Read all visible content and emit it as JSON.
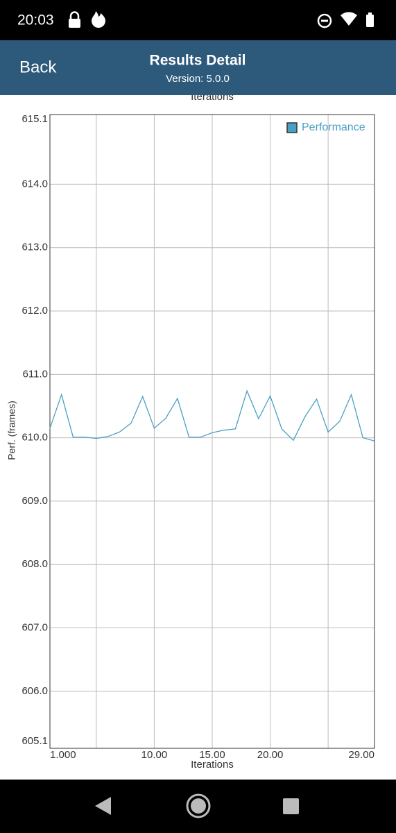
{
  "status_bar": {
    "time": "20:03"
  },
  "app_bar": {
    "back": "Back",
    "title": "Results Detail",
    "subtitle": "Version: 5.0.0"
  },
  "chart_data": {
    "type": "line",
    "top_label": "Iterations",
    "x_label": "Iterations",
    "y_label": "Perf. (frames)",
    "x": [
      1,
      2,
      3,
      4,
      5,
      6,
      7,
      8,
      9,
      10,
      11,
      12,
      13,
      14,
      15,
      16,
      17,
      18,
      19,
      20,
      21,
      22,
      23,
      24,
      25,
      26,
      27,
      28,
      29
    ],
    "series": [
      {
        "name": "Performance",
        "color": "#4a9fc4",
        "values": [
          610.15,
          610.68,
          610.01,
          610.01,
          609.99,
          610.02,
          610.09,
          610.23,
          610.65,
          610.15,
          610.31,
          610.62,
          610.01,
          610.01,
          610.08,
          610.12,
          610.14,
          610.74,
          610.3,
          610.66,
          610.14,
          609.96,
          610.33,
          610.61,
          610.09,
          610.26,
          610.68,
          610.0,
          609.95
        ]
      }
    ],
    "xlim": [
      1,
      29
    ],
    "xticks": [
      {
        "value": 1,
        "label": "1.000"
      },
      {
        "value": 5,
        "label": null
      },
      {
        "value": 10,
        "label": "10.00"
      },
      {
        "value": 15,
        "label": "15.00"
      },
      {
        "value": 20,
        "label": "20.00"
      },
      {
        "value": 25,
        "label": null
      },
      {
        "value": 29,
        "label": "29.00"
      }
    ],
    "ylim": [
      605.1,
      615.1
    ],
    "yticks": [
      {
        "value": 605.1,
        "label": "605.1"
      },
      {
        "value": 606,
        "label": "606.0"
      },
      {
        "value": 607,
        "label": "607.0"
      },
      {
        "value": 608,
        "label": "608.0"
      },
      {
        "value": 609,
        "label": "609.0"
      },
      {
        "value": 610,
        "label": "610.0"
      },
      {
        "value": 611,
        "label": "611.0"
      },
      {
        "value": 612,
        "label": "612.0"
      },
      {
        "value": 613,
        "label": "613.0"
      },
      {
        "value": 614,
        "label": "614.0"
      },
      {
        "value": 615.1,
        "label": "615.1"
      }
    ],
    "grid": true,
    "legend": "top-right"
  }
}
